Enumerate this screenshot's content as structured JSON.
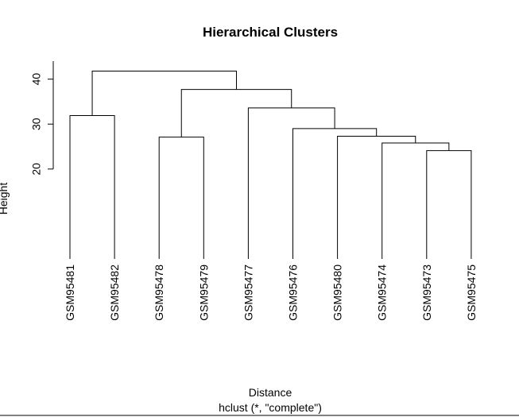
{
  "chart_data": {
    "type": "dendrogram",
    "title": "Hierarchical Clusters",
    "y_label": "Height",
    "x_label": "Distance",
    "subtitle": "hclust (*, \"complete\")",
    "labels": [
      "GSM95481",
      "GSM95482",
      "GSM95478",
      "GSM95479",
      "GSM95477",
      "GSM95476",
      "GSM95480",
      "GSM95474",
      "GSM95473",
      "GSM95475"
    ],
    "merge": [
      [
        -9,
        -10
      ],
      [
        -8,
        1
      ],
      [
        -3,
        -4
      ],
      [
        -7,
        2
      ],
      [
        -6,
        4
      ],
      [
        -1,
        -2
      ],
      [
        -5,
        5
      ],
      [
        3,
        7
      ],
      [
        6,
        8
      ]
    ],
    "height": [
      24.1,
      25.8,
      27.1,
      27.3,
      29.0,
      31.9,
      33.6,
      37.7,
      41.8
    ],
    "color": "#000000",
    "ylim": [
      0,
      44
    ],
    "yticks": [
      20,
      30,
      40
    ]
  }
}
